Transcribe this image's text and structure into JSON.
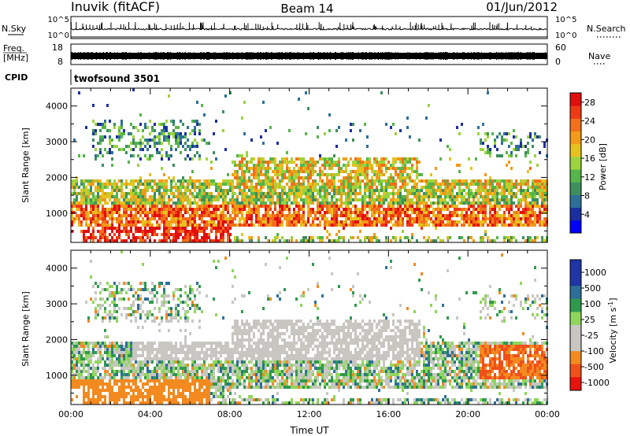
{
  "header": {
    "station": "Inuvik (fitACF)",
    "beam": "Beam 14",
    "date": "01/Jun/2012"
  },
  "nsky_panel": {
    "label": "N.Sky",
    "tick_top": "10^5",
    "tick_bottom": "10^0",
    "right_tick_top": "10^5",
    "right_tick_bottom": "10^0",
    "right_label": "N.Search"
  },
  "freq_panel": {
    "label_1": "Freq.",
    "label_2": "[MHz]",
    "tick_top": "18",
    "tick_bottom": "8",
    "right_tick_top": "60",
    "right_tick_bottom": "0",
    "right_label": "Nave"
  },
  "cpid_panel": {
    "label": "CPID",
    "mode": "twofsound 3501"
  },
  "colors": {
    "power": [
      "#0000ff",
      "#1c2fa0",
      "#2e6f9a",
      "#3d8f5e",
      "#55b54a",
      "#9bd43c",
      "#e6c21e",
      "#f39a18",
      "#f2701a",
      "#ee3a14",
      "#e10e0e"
    ],
    "velocity_negative": [
      "#e8120e",
      "#f0501a",
      "#f38a20"
    ],
    "velocity_low": "#c7c6c1",
    "velocity_positive": [
      "#8fd65a",
      "#2f9a4e",
      "#2d6f9a",
      "#2035a6"
    ]
  },
  "chart_data": [
    {
      "type": "heatmap",
      "panel": "power",
      "xlabel": "",
      "ylabel": "Slant Range [km]",
      "y_ticks": [
        1000,
        2000,
        3000,
        4000
      ],
      "ylim": [
        180,
        4500
      ],
      "xlim_hours": [
        0,
        24
      ],
      "colorbar_label": "Power [dB]",
      "colorbar_ticks": [
        "4",
        "8",
        "12",
        "16",
        "20",
        "24",
        "28"
      ],
      "colorbar_range": [
        0,
        30
      ],
      "echo_bands": [
        {
          "name": "near-range band",
          "t_start": 0.0,
          "t_end": 24.0,
          "range_km": [
            700,
            2000
          ]
        },
        {
          "name": "upper band",
          "t_start": 8.0,
          "t_end": 17.5,
          "range_km": [
            1700,
            2600
          ]
        },
        {
          "name": "far-range band",
          "t_start": 1.0,
          "t_end": 6.5,
          "range_km": [
            2500,
            3700
          ]
        },
        {
          "name": "early strong echoes",
          "t_start": 0.5,
          "t_end": 8.0,
          "range_km": [
            250,
            700
          ]
        }
      ]
    },
    {
      "type": "heatmap",
      "panel": "velocity",
      "xlabel": "Time UT",
      "ylabel": "Slant Range [km]",
      "y_ticks": [
        1000,
        2000,
        3000,
        4000
      ],
      "ylim": [
        180,
        4500
      ],
      "x_ticks": [
        "00:00",
        "04:00",
        "08:00",
        "12:00",
        "16:00",
        "20:00",
        "00:00"
      ],
      "x_tick_hours": [
        0,
        4,
        8,
        12,
        16,
        20,
        24
      ],
      "colorbar_label": "Velocity [m s",
      "colorbar_unit_exponent": "-1",
      "colorbar_unit_close": "]",
      "colorbar_ticks": [
        "1000",
        "500",
        "100",
        "25",
        "-25",
        "-100",
        "-500",
        "-1000"
      ],
      "features": [
        {
          "name": "ground scatter",
          "t_start": 3.0,
          "t_end": 17.5,
          "range_km": [
            1500,
            2600
          ],
          "velocity": "-25 to 25"
        },
        {
          "name": "receding echoes",
          "t_start": 20.5,
          "t_end": 24.0,
          "range_km": [
            900,
            1900
          ],
          "velocity": "-100 to -500"
        },
        {
          "name": "early near-range",
          "t_start": 0.0,
          "t_end": 7.0,
          "range_km": [
            250,
            900
          ],
          "velocity": "-100 to -500"
        }
      ]
    }
  ]
}
